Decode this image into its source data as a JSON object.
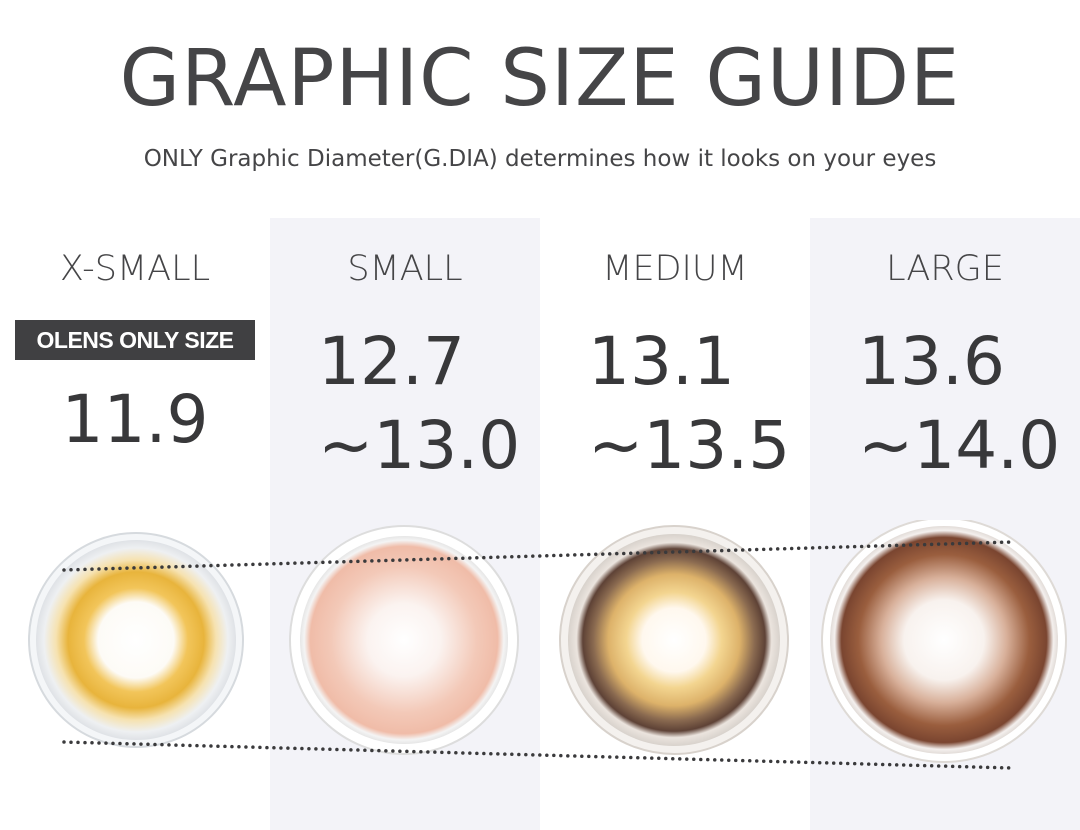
{
  "header": {
    "title": "GRAPHIC SIZE GUIDE",
    "subtitle": "ONLY Graphic Diameter(G.DIA) determines how it looks on your eyes"
  },
  "sizes": [
    {
      "label": "X-SMALL",
      "badge": "OLENS ONLY SIZE",
      "value": "11.9"
    },
    {
      "label": "SMALL",
      "value_line1": "12.7",
      "value_line2": "~13.0"
    },
    {
      "label": "MEDIUM",
      "value_line1": "13.1",
      "value_line2": "~13.5"
    },
    {
      "label": "LARGE",
      "value_line1": "13.6",
      "value_line2": "~14.0"
    }
  ],
  "colors": {
    "text": "#454547",
    "badge_bg": "#404042",
    "column_shade": "#f3f3f8",
    "xsmall_lens": "#e8b43c",
    "small_lens": "#f2c3b0",
    "medium_lens_outer": "#6b4a3a",
    "medium_lens_inner": "#e8c070",
    "large_lens": "#8a5236"
  }
}
